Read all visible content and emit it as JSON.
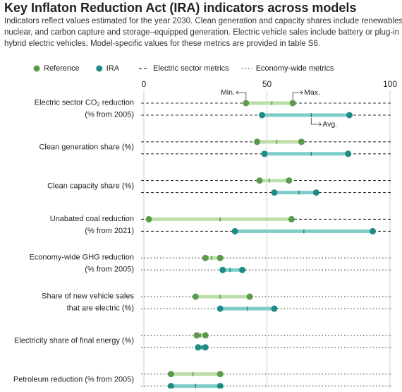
{
  "chart_data": {
    "type": "dumbbell",
    "title": "Key Inflaton Reduction Act (IRA) indicators across models",
    "subtitle": [
      "Indicators reflect values estimated for the year 2030. Clean generation and capacity shares include renewables,",
      "nuclear, and carbon capture and storage–equipped generation. Electric vehicle sales include battery or plug-in",
      "hybrid electric vehicles. Model-specific values for these metrics are provided in table S6."
    ],
    "xlim": [
      0,
      100
    ],
    "xticks": [
      0,
      50,
      100
    ],
    "grid": true,
    "annotations": {
      "min": "Min.",
      "max": "Max.",
      "avg": "Avg."
    },
    "metric_groups": [
      {
        "name": "Electric sector metrics",
        "dash": "4 3"
      },
      {
        "name": "Economy-wide metrics",
        "dash": "1.5 3"
      }
    ],
    "category_group": [
      0,
      0,
      0,
      0,
      1,
      1,
      1,
      1
    ],
    "categories": [
      [
        "Electric sector CO₂ reduction",
        "(% from 2005)"
      ],
      [
        "Clean generation share (%)"
      ],
      [
        "Clean capacity share (%)"
      ],
      [
        "Unabated coal reduction",
        "(% from 2021)"
      ],
      [
        "Economy-wide GHG reduction",
        "(% from 2005)"
      ],
      [
        "Share of new vehicle sales",
        "that are electric (%)"
      ],
      [
        "Electricity share of final energy (%)"
      ],
      [
        "Petroleum reduction (% from 2005)"
      ]
    ],
    "series": [
      {
        "name": "Reference",
        "color": "#5a9a4c",
        "range_color": "#bddeaa",
        "min": [
          41.5,
          46,
          47,
          2,
          25,
          21,
          21.5,
          11
        ],
        "avg": [
          52,
          54,
          51,
          31,
          27.5,
          31,
          23,
          20
        ],
        "max": [
          60.5,
          64,
          59,
          60,
          31,
          43,
          25,
          31
        ]
      },
      {
        "name": "IRA",
        "color": "#1e8c86",
        "range_color": "#7fcdc7",
        "min": [
          48,
          49,
          53,
          37,
          32,
          31,
          22,
          11
        ],
        "avg": [
          68,
          68,
          63,
          65,
          35,
          42,
          23.5,
          21
        ],
        "max": [
          83.5,
          83,
          70,
          93,
          40,
          53,
          25,
          31
        ]
      }
    ]
  }
}
